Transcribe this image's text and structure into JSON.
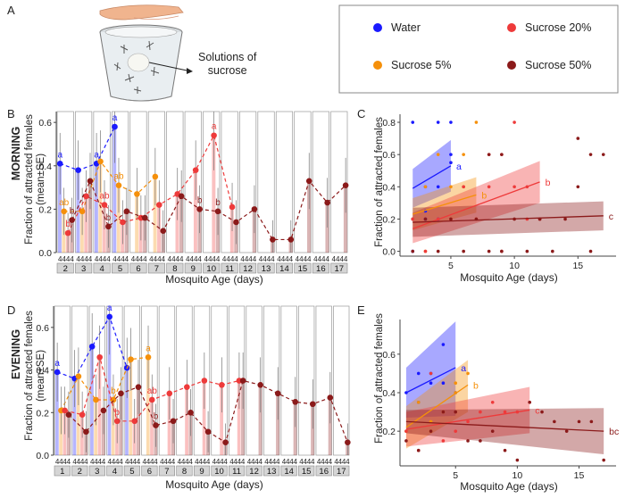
{
  "panel_letters": {
    "A": "A",
    "B": "B",
    "C": "C",
    "D": "D",
    "E": "E"
  },
  "schematic": {
    "caption": "Solutions of\nsucrose"
  },
  "legend": {
    "items": [
      {
        "label": "Water",
        "color": "#1a1aff"
      },
      {
        "label": "Sucrose 5%",
        "color": "#f5900a"
      },
      {
        "label": "Sucrose 20%",
        "color": "#ee3a3a"
      },
      {
        "label": "Sucrose 50%",
        "color": "#8b1a1a"
      }
    ]
  },
  "colors": {
    "water": "#1a1aff",
    "s5": "#f5900a",
    "s20": "#ee3a3a",
    "s50": "#8b1a1a"
  },
  "chart_data": [
    {
      "id": "B",
      "type": "bar",
      "row_label": "MORNING",
      "title": "",
      "ylabel": "Fraction of attracted females\n(mean±SE)",
      "xlabel": "Mosquito Age (days)",
      "ylim": [
        0,
        0.65
      ],
      "yticks": [
        0.0,
        0.2,
        0.4,
        0.6
      ],
      "ages": [
        "2",
        "3",
        "4",
        "5",
        "6",
        "7",
        "8",
        "9",
        "10",
        "11",
        "12",
        "13",
        "14",
        "15",
        "16",
        "17"
      ],
      "age_box_label": "4",
      "series": [
        {
          "name": "Water",
          "values": [
            0.41,
            0.38,
            0.41,
            0.58,
            null,
            null,
            null,
            null,
            null,
            null,
            null,
            null,
            null,
            null,
            null,
            null
          ],
          "letters": [
            "a",
            "",
            "a",
            "a",
            "",
            "",
            "",
            "",
            "",
            "",
            "",
            "",
            "",
            "",
            "",
            ""
          ]
        },
        {
          "name": "Sucrose 5%",
          "values": [
            0.19,
            0.19,
            0.42,
            0.31,
            0.27,
            0.35,
            null,
            null,
            null,
            null,
            null,
            null,
            null,
            null,
            null,
            null
          ],
          "letters": [
            "ab",
            "",
            "",
            "ab",
            "",
            "",
            "",
            "",
            "",
            "",
            "",
            "",
            "",
            "",
            "",
            ""
          ]
        },
        {
          "name": "Sucrose 20%",
          "values": [
            0.09,
            0.26,
            0.22,
            0.14,
            0.16,
            0.22,
            0.27,
            0.38,
            0.54,
            0.21,
            null,
            null,
            null,
            null,
            null,
            null
          ],
          "letters": [
            "b",
            "",
            "ab",
            "",
            "",
            "",
            "",
            "",
            "a",
            "",
            "",
            "",
            "",
            "",
            "",
            ""
          ]
        },
        {
          "name": "Sucrose 50%",
          "values": [
            0.15,
            0.33,
            0.12,
            0.19,
            0.16,
            0.1,
            0.26,
            0.2,
            0.19,
            0.14,
            0.2,
            0.06,
            0.06,
            0.33,
            0.23,
            0.31
          ],
          "letters": [
            "b",
            "",
            "b",
            "",
            "",
            "",
            "",
            "b",
            "b",
            "",
            "",
            "",
            "",
            "",
            "",
            ""
          ]
        }
      ]
    },
    {
      "id": "C",
      "type": "scatter",
      "xlabel": "Mosquito Age (days)",
      "ylabel": "Fraction of attracted females",
      "xlim": [
        1,
        18
      ],
      "ylim": [
        -0.03,
        0.85
      ],
      "xticks": [
        5,
        10,
        15
      ],
      "yticks": [
        0.0,
        0.2,
        0.4,
        0.6,
        0.8
      ],
      "series": [
        {
          "name": "Water",
          "x": [
            2,
            2,
            3,
            3,
            4,
            4,
            5,
            5,
            2,
            3,
            4,
            5
          ],
          "y": [
            0.0,
            0.8,
            0.4,
            0.25,
            0.8,
            0.4,
            0.6,
            0.55,
            0.2,
            0.2,
            0.2,
            0.8
          ],
          "fit": {
            "x0": 2,
            "y0": 0.39,
            "x1": 5,
            "y1": 0.53,
            "lo0": 0.27,
            "hi0": 0.51,
            "lo1": 0.37,
            "hi1": 0.69
          },
          "letter": "a"
        },
        {
          "name": "Sucrose 5%",
          "x": [
            2,
            3,
            4,
            5,
            6,
            7,
            3,
            5,
            6,
            7
          ],
          "y": [
            0.2,
            0.4,
            0.6,
            0.2,
            0.4,
            0.2,
            0.0,
            0.4,
            0.6,
            0.8
          ],
          "fit": {
            "x0": 2,
            "y0": 0.23,
            "x1": 7,
            "y1": 0.35,
            "lo0": 0.13,
            "hi0": 0.33,
            "lo1": 0.24,
            "hi1": 0.46
          },
          "letter": "b"
        },
        {
          "name": "Sucrose 20%",
          "x": [
            2,
            3,
            4,
            5,
            6,
            7,
            8,
            9,
            10,
            11,
            12,
            8,
            9,
            10,
            11
          ],
          "y": [
            0.2,
            0.0,
            0.2,
            0.2,
            0.4,
            0.2,
            0.4,
            0.6,
            0.8,
            0.4,
            0.2,
            0.6,
            0.0,
            0.4,
            0.2
          ],
          "fit": {
            "x0": 2,
            "y0": 0.14,
            "x1": 12,
            "y1": 0.43,
            "lo0": 0.05,
            "hi0": 0.24,
            "lo1": 0.3,
            "hi1": 0.56
          },
          "letter": "b"
        },
        {
          "name": "Sucrose 50%",
          "x": [
            2,
            3,
            4,
            5,
            6,
            7,
            8,
            9,
            10,
            11,
            12,
            13,
            14,
            15,
            16,
            17,
            8,
            9,
            12,
            15,
            16
          ],
          "y": [
            0.0,
            0.2,
            0.0,
            0.2,
            0.0,
            0.2,
            0.0,
            0.6,
            0.2,
            0.0,
            0.2,
            0.0,
            0.2,
            0.4,
            0.0,
            0.6,
            0.6,
            0.0,
            0.2,
            0.7,
            0.6
          ],
          "fit": {
            "x0": 2,
            "y0": 0.18,
            "x1": 17,
            "y1": 0.22,
            "lo0": 0.09,
            "hi0": 0.27,
            "lo1": 0.13,
            "hi1": 0.31
          },
          "letter": "c"
        }
      ]
    },
    {
      "id": "D",
      "type": "bar",
      "row_label": "EVENING",
      "title": "",
      "ylabel": "Fraction of attracted females\n(mean±SE)",
      "xlabel": "Mosquito Age (days)",
      "ylim": [
        0,
        0.7
      ],
      "yticks": [
        0.0,
        0.2,
        0.4,
        0.6
      ],
      "ages": [
        "1",
        "2",
        "3",
        "4",
        "5",
        "6",
        "7",
        "8",
        "9",
        "10",
        "11",
        "12",
        "13",
        "14",
        "15",
        "16",
        "17"
      ],
      "age_box_label": "4",
      "series": [
        {
          "name": "Water",
          "values": [
            0.39,
            0.36,
            0.51,
            0.65,
            0.41,
            null,
            null,
            null,
            null,
            null,
            null,
            null,
            null,
            null,
            null,
            null,
            null
          ],
          "letters": [
            "a",
            "",
            "",
            "a",
            "",
            "",
            "",
            "",
            "",
            "",
            "",
            "",
            "",
            "",
            "",
            "",
            ""
          ]
        },
        {
          "name": "Sucrose 5%",
          "values": [
            0.21,
            0.37,
            0.26,
            0.26,
            0.45,
            0.46,
            null,
            null,
            null,
            null,
            null,
            null,
            null,
            null,
            null,
            null,
            null
          ],
          "letters": [
            "",
            "",
            "",
            "b",
            "",
            "a",
            "",
            "",
            "",
            "",
            "",
            "",
            "",
            "",
            "",
            "",
            ""
          ]
        },
        {
          "name": "Sucrose 20%",
          "values": [
            0.21,
            0.19,
            0.46,
            0.16,
            0.16,
            0.26,
            0.29,
            0.32,
            0.35,
            0.33,
            0.35,
            null,
            null,
            null,
            null,
            null,
            null
          ],
          "letters": [
            "",
            "",
            "",
            "b",
            "",
            "ab",
            "",
            "",
            "",
            "",
            "",
            "",
            "",
            "",
            "",
            "",
            ""
          ]
        },
        {
          "name": "Sucrose 50%",
          "values": [
            0.19,
            0.11,
            0.21,
            0.29,
            0.32,
            0.14,
            0.16,
            0.2,
            0.11,
            0.06,
            0.35,
            0.33,
            0.29,
            0.25,
            0.24,
            0.27,
            0.06
          ],
          "letters": [
            "",
            "",
            "",
            "",
            "",
            "b",
            "",
            "",
            "",
            "",
            "",
            "",
            "",
            "",
            "",
            "",
            ""
          ]
        }
      ]
    },
    {
      "id": "E",
      "type": "scatter",
      "xlabel": "Mosquito Age (days)",
      "ylabel": "Fraction of attracted females",
      "xlim": [
        0.5,
        18
      ],
      "ylim": [
        0.02,
        0.78
      ],
      "xticks": [
        5,
        10,
        15
      ],
      "yticks": [
        0.2,
        0.4,
        0.6
      ],
      "series": [
        {
          "name": "Water",
          "x": [
            1,
            2,
            3,
            4,
            5,
            2,
            3,
            4
          ],
          "y": [
            0.4,
            0.5,
            0.45,
            0.65,
            0.4,
            0.35,
            0.5,
            0.45
          ],
          "fit": {
            "x0": 1,
            "y0": 0.4,
            "x1": 5,
            "y1": 0.53,
            "lo0": 0.27,
            "hi0": 0.53,
            "lo1": 0.28,
            "hi1": 0.77
          },
          "letter": "a"
        },
        {
          "name": "Sucrose 5%",
          "x": [
            1,
            2,
            3,
            4,
            5,
            6,
            3,
            5
          ],
          "y": [
            0.2,
            0.35,
            0.2,
            0.3,
            0.45,
            0.5,
            0.25,
            0.4
          ],
          "fit": {
            "x0": 1,
            "y0": 0.22,
            "x1": 6,
            "y1": 0.44,
            "lo0": 0.11,
            "hi0": 0.33,
            "lo1": 0.3,
            "hi1": 0.57
          },
          "letter": "b"
        },
        {
          "name": "Sucrose 20%",
          "x": [
            1,
            2,
            3,
            4,
            5,
            6,
            7,
            8,
            9,
            10,
            11
          ],
          "y": [
            0.2,
            0.1,
            0.5,
            0.15,
            0.2,
            0.25,
            0.3,
            0.35,
            0.3,
            0.3,
            0.35
          ],
          "fit": {
            "x0": 1,
            "y0": 0.21,
            "x1": 11,
            "y1": 0.31,
            "lo0": 0.12,
            "hi0": 0.3,
            "lo1": 0.19,
            "hi1": 0.43
          },
          "letter": "c"
        },
        {
          "name": "Sucrose 50%",
          "x": [
            1,
            2,
            3,
            4,
            5,
            6,
            7,
            8,
            9,
            10,
            11,
            12,
            13,
            14,
            15,
            16,
            17
          ],
          "y": [
            0.15,
            0.1,
            0.2,
            0.3,
            0.3,
            0.15,
            0.15,
            0.2,
            0.1,
            0.05,
            0.35,
            0.3,
            0.25,
            0.2,
            0.25,
            0.25,
            0.05
          ],
          "fit": {
            "x0": 1,
            "y0": 0.25,
            "x1": 17,
            "y1": 0.2,
            "lo0": 0.19,
            "hi0": 0.31,
            "lo1": 0.08,
            "hi1": 0.32
          },
          "letter": "bc"
        }
      ]
    }
  ]
}
